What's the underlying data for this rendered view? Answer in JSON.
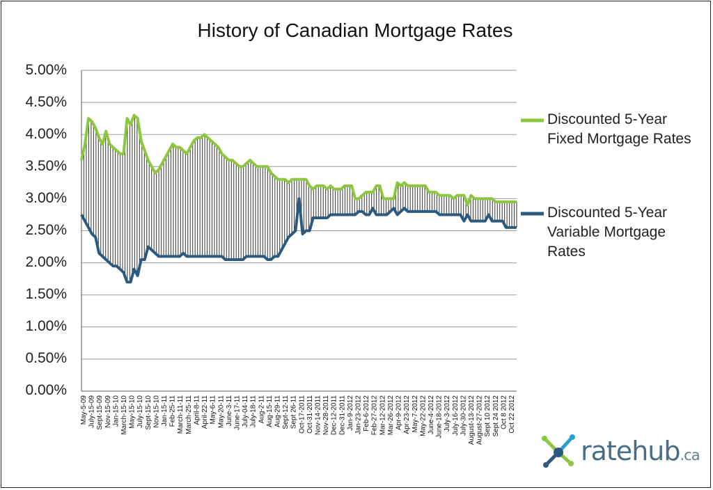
{
  "chart_data": {
    "type": "line",
    "title": "History of Canadian Mortgage Rates",
    "y_tick_labels": [
      "5.00%",
      "4.50%",
      "4.00%",
      "3.50%",
      "3.00%",
      "2.50%",
      "2.00%",
      "1.50%",
      "1.00%",
      "0.50%",
      "0.00%"
    ],
    "ylim": [
      0,
      5
    ],
    "grid": true,
    "legend_position": "right",
    "fill_between_series": "vertical hatch lines between the two series",
    "x_labels": [
      "May-5-09",
      "July-15-09",
      "Sept-15-09",
      "Nov-15-09",
      "Jan-15-10",
      "March-15-10",
      "May-15-10",
      "July-15-10",
      "Sept-15-10",
      "Nov-15-10",
      "Jan-15-11",
      "Feb-25-11",
      "March-11-11",
      "March-25-11",
      "April-8-11",
      "April-22-11",
      "May-6-11",
      "May-20-11",
      "June-3-11",
      "June-17-11",
      "July-04-11",
      "July-18-11",
      "Aug-2-11",
      "Aug-15-11",
      "Aug-29-11",
      "Sept-12-11",
      "Sept 26-11",
      "Oct-17-2011",
      "Oct-31-2011",
      "Nov-14-2011",
      "Nov-28-2011",
      "Dec-12-2011",
      "Dec-31-2011",
      "Jan-9-2012",
      "Jan-23-2012",
      "Feb-6-2012",
      "Feb-27-2012",
      "Mar-12-2012",
      "Mar-26-2012",
      "Apr-9-2012",
      "Apr-23-2012",
      "May-7-2012",
      "May-22-2012",
      "June-4-2012",
      "June-18-2012",
      "July-3-2012",
      "July-16-2012",
      "July-30-2012",
      "August-13-2012",
      "August-27-2012",
      "Sept 10 2012",
      "Sept 24 2012",
      "Oct 8 2012",
      "Oct 22 2012"
    ],
    "series": [
      {
        "name": "Discounted 5-Year Fixed Mortgage Rates",
        "color": "#8dc63f",
        "values": [
          3.6,
          3.85,
          4.25,
          4.2,
          4.1,
          3.95,
          3.85,
          4.05,
          3.85,
          3.8,
          3.75,
          3.7,
          3.7,
          4.25,
          4.15,
          4.3,
          4.25,
          3.9,
          3.75,
          3.6,
          3.5,
          3.4,
          3.45,
          3.55,
          3.65,
          3.75,
          3.85,
          3.8,
          3.8,
          3.75,
          3.7,
          3.8,
          3.9,
          3.95,
          3.95,
          4.0,
          3.95,
          3.9,
          3.85,
          3.8,
          3.7,
          3.65,
          3.6,
          3.6,
          3.55,
          3.5,
          3.5,
          3.55,
          3.6,
          3.55,
          3.5,
          3.5,
          3.5,
          3.5,
          3.4,
          3.35,
          3.3,
          3.3,
          3.3,
          3.25,
          3.3,
          3.3,
          3.3,
          3.3,
          3.3,
          3.2,
          3.15,
          3.2,
          3.2,
          3.2,
          3.15,
          3.2,
          3.15,
          3.15,
          3.15,
          3.2,
          3.2,
          3.2,
          3.0,
          3.0,
          3.05,
          3.1,
          3.1,
          3.1,
          3.2,
          3.2,
          3.0,
          3.0,
          3.0,
          3.0,
          3.25,
          3.2,
          3.25,
          3.2,
          3.2,
          3.2,
          3.2,
          3.2,
          3.2,
          3.1,
          3.1,
          3.1,
          3.05,
          3.05,
          3.05,
          3.05,
          3.0,
          3.05,
          3.05,
          3.05,
          2.9,
          3.05,
          3.0,
          3.0,
          3.0,
          3.0,
          3.0,
          3.0,
          2.95,
          2.95,
          2.95,
          2.95,
          2.95,
          2.95,
          2.95
        ]
      },
      {
        "name": "Discounted 5-Year Variable Mortgage Rates",
        "color": "#2c5a7e",
        "values": [
          2.75,
          2.65,
          2.55,
          2.45,
          2.4,
          2.15,
          2.1,
          2.05,
          2.0,
          1.95,
          1.95,
          1.9,
          1.85,
          1.7,
          1.7,
          1.9,
          1.8,
          2.05,
          2.05,
          2.25,
          2.2,
          2.15,
          2.1,
          2.1,
          2.1,
          2.1,
          2.1,
          2.1,
          2.1,
          2.15,
          2.1,
          2.1,
          2.1,
          2.1,
          2.1,
          2.1,
          2.1,
          2.1,
          2.1,
          2.1,
          2.1,
          2.05,
          2.05,
          2.05,
          2.05,
          2.05,
          2.05,
          2.1,
          2.1,
          2.1,
          2.1,
          2.1,
          2.1,
          2.05,
          2.05,
          2.1,
          2.1,
          2.2,
          2.3,
          2.4,
          2.45,
          2.5,
          3.0,
          2.45,
          2.5,
          2.5,
          2.7,
          2.7,
          2.7,
          2.7,
          2.7,
          2.75,
          2.75,
          2.75,
          2.75,
          2.75,
          2.75,
          2.75,
          2.75,
          2.8,
          2.8,
          2.75,
          2.75,
          2.85,
          2.75,
          2.75,
          2.75,
          2.75,
          2.8,
          2.85,
          2.75,
          2.8,
          2.85,
          2.8,
          2.8,
          2.8,
          2.8,
          2.8,
          2.8,
          2.8,
          2.8,
          2.8,
          2.75,
          2.75,
          2.75,
          2.75,
          2.75,
          2.75,
          2.75,
          2.65,
          2.75,
          2.65,
          2.65,
          2.65,
          2.65,
          2.65,
          2.75,
          2.65,
          2.65,
          2.65,
          2.65,
          2.55,
          2.55,
          2.55,
          2.55
        ]
      }
    ]
  },
  "legend": {
    "fixed_label": "Discounted 5-Year\nFixed Mortgage Rates",
    "variable_label": "Discounted 5-Year\nVariable Mortgage\nRates"
  },
  "logo": {
    "main": "ratehub",
    "suffix": ".ca"
  }
}
